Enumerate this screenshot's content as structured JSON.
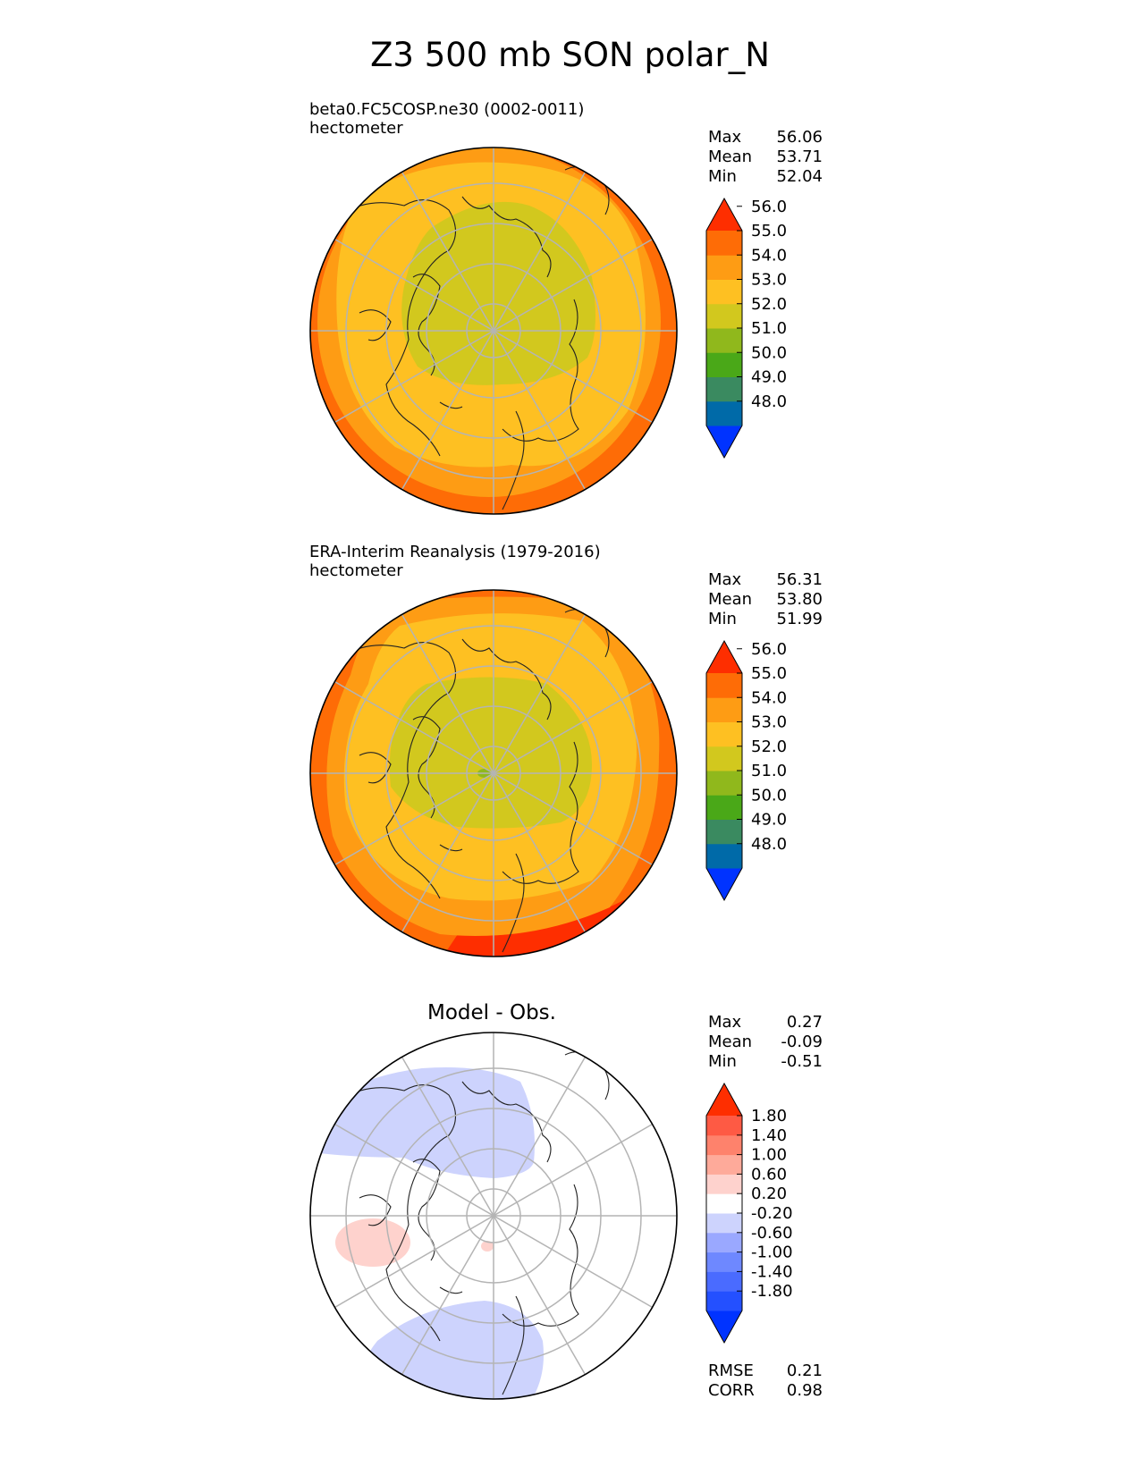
{
  "title": "Z3 500 mb SON polar_N",
  "panels": [
    {
      "name": "test",
      "subtitle_line1": "beta0.FC5COSP.ne30 (0002-0011)",
      "subtitle_line2": "hectometer",
      "stats": {
        "max_label": "Max",
        "max": "56.06",
        "mean_label": "Mean",
        "mean": "53.71",
        "min_label": "Min",
        "min": "52.04"
      }
    },
    {
      "name": "reference",
      "subtitle_line1": "ERA-Interim Reanalysis (1979-2016)",
      "subtitle_line2": "hectometer",
      "stats": {
        "max_label": "Max",
        "max": "56.31",
        "mean_label": "Mean",
        "mean": "53.80",
        "min_label": "Min",
        "min": "51.99"
      }
    },
    {
      "name": "difference",
      "title": "Model - Obs.",
      "stats": {
        "max_label": "Max",
        "max": "0.27",
        "mean_label": "Mean",
        "mean": "-0.09",
        "min_label": "Min",
        "min": "-0.51"
      },
      "metrics": {
        "rmse_label": "RMSE",
        "rmse": "0.21",
        "corr_label": "CORR",
        "corr": "0.98"
      }
    }
  ],
  "colorbar_main": {
    "colors": [
      "#0033ff",
      "#006aa8",
      "#3a8a60",
      "#4aa818",
      "#90b81c",
      "#d2c81e",
      "#fec022",
      "#fe9c14",
      "#fe6c06",
      "#fe2e00"
    ],
    "ticks": [
      "48.0",
      "49.0",
      "50.0",
      "51.0",
      "52.0",
      "53.0",
      "54.0",
      "55.0",
      "56.0"
    ]
  },
  "colorbar_diff": {
    "colors": [
      "#0033ff",
      "#2450ff",
      "#4a6bff",
      "#6e88ff",
      "#9aa8ff",
      "#cdd3fd",
      "#ffffff",
      "#fed2cd",
      "#feaa9a",
      "#fe826c",
      "#fe5a44",
      "#fe2e00"
    ],
    "ticks": [
      "-1.80",
      "-1.40",
      "-1.00",
      "-0.60",
      "-0.20",
      "0.20",
      "0.60",
      "1.00",
      "1.40",
      "1.80"
    ]
  }
}
